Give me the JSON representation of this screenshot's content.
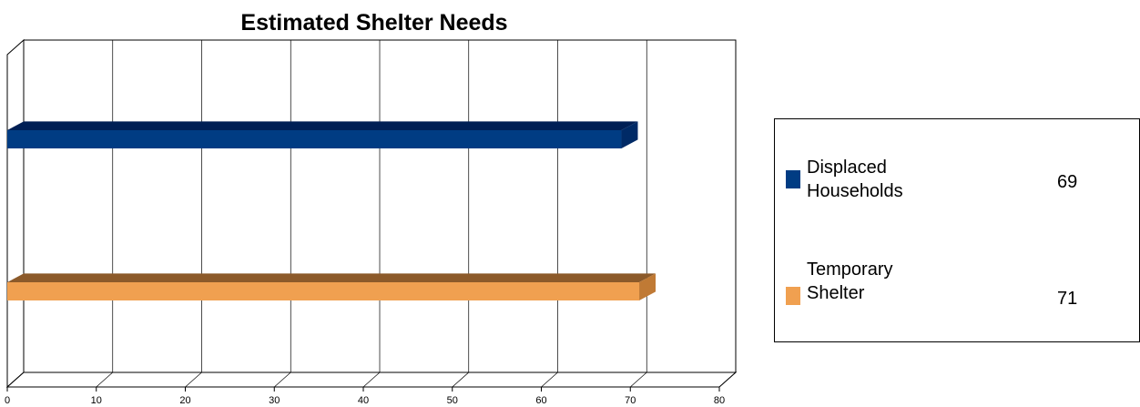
{
  "chart_data": {
    "type": "bar",
    "orientation": "horizontal",
    "title": "Estimated Shelter Needs",
    "xlim": [
      0,
      80
    ],
    "xticks": [
      0,
      10,
      20,
      30,
      40,
      50,
      60,
      70,
      80
    ],
    "grid": true,
    "legend_position": "right",
    "series": [
      {
        "name": "Displaced Households",
        "value": 69,
        "color": "#003c83",
        "top_color": "#001f55",
        "side_color": "#002a66",
        "legend_label": "Displaced\nHouseholds"
      },
      {
        "name": "Temporary Shelter",
        "value": 71,
        "color": "#f0a050",
        "top_color": "#8c5a2a",
        "side_color": "#c07a35",
        "legend_label": "Temporary\nShelter"
      }
    ]
  }
}
